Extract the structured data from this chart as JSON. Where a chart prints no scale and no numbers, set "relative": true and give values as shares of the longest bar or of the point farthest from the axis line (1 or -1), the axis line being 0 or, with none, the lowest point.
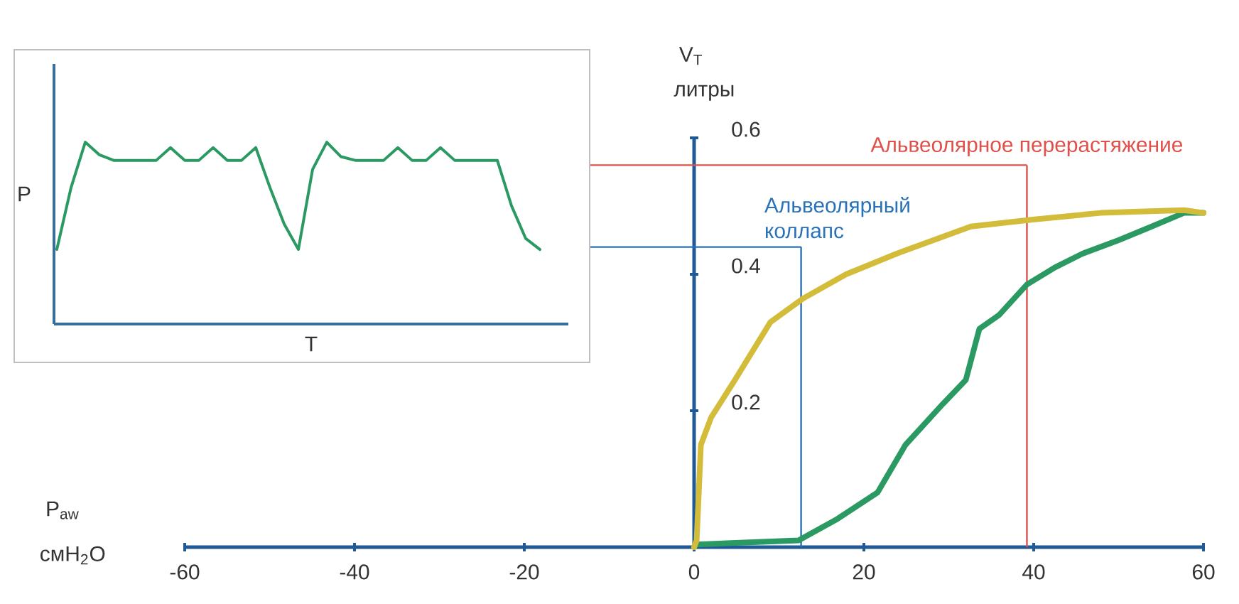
{
  "chart_data": [
    {
      "type": "line",
      "xlabel": "P$_{aw}$",
      "ylabel": "V$_{T}$",
      "xlim": [
        -60,
        60
      ],
      "ylim": [
        0,
        0.6
      ],
      "xticks": [
        -60,
        -40,
        -20,
        0,
        20,
        40,
        60
      ],
      "yticks": [
        0.2,
        0.4,
        0.6
      ],
      "annotations": [
        "смH$_{2}$O",
        "литры"
      ],
      "series": [
        {
          "color": "#2a9a62",
          "x": [
            0,
            0.3,
            12.3,
            16.7,
            21.6,
            24.9,
            29.3,
            32,
            33.6,
            35.9,
            39.2,
            42.5,
            45.7,
            50,
            53.9,
            57.7,
            60
          ],
          "values": [
            0,
            0.004,
            0.01,
            0.04,
            0.08,
            0.15,
            0.21,
            0.245,
            0.32,
            0.34,
            0.385,
            0.41,
            0.43,
            0.45,
            0.47,
            0.49,
            0.49
          ]
        },
        {
          "color": "#d2bc3a",
          "x": [
            0,
            0.3,
            0.8,
            2,
            4.8,
            9,
            12.9,
            17.9,
            23.8,
            32.6,
            39.7,
            47.9,
            57.7,
            60
          ],
          "values": [
            0,
            0.01,
            0.15,
            0.19,
            0.245,
            0.33,
            0.365,
            0.4,
            0.43,
            0.47,
            0.48,
            0.49,
            0.494,
            0.49
          ]
        }
      ],
      "ref_lines": [
        {
          "axis": "x",
          "value": 39.2,
          "label": "Альвеолярное перерастяжение",
          "color": "#e0504a"
        },
        {
          "axis": "y",
          "value": 0.56,
          "color": "#e0504a"
        },
        {
          "axis": "x",
          "value": 12.6,
          "label": "Альвеолярный коллапс",
          "color": "#2a72b8"
        },
        {
          "axis": "y",
          "value": 0.44,
          "color": "#2a72b8"
        }
      ]
    },
    {
      "type": "line",
      "relative": true,
      "xlabel": "T",
      "ylabel": "P",
      "categories": [
        null,
        null,
        null,
        null,
        null,
        null,
        null,
        null,
        null,
        null,
        null,
        null,
        null,
        null,
        null,
        null,
        null,
        null,
        null,
        null,
        null,
        null,
        null,
        null,
        null,
        null,
        null,
        null,
        null,
        null,
        null,
        null,
        null,
        null,
        null
      ],
      "series": [
        {
          "color": "#2a9a62",
          "values": [
            0.41,
            0.75,
            1.0,
            0.93,
            0.9,
            0.9,
            0.9,
            0.9,
            0.97,
            0.9,
            0.9,
            0.97,
            0.9,
            0.9,
            0.97,
            0.75,
            0.55,
            0.41,
            0.85,
            1.0,
            0.92,
            0.9,
            0.9,
            0.9,
            0.97,
            0.9,
            0.9,
            0.97,
            0.9,
            0.9,
            0.9,
            0.9,
            0.65,
            0.47,
            0.41
          ]
        }
      ]
    }
  ]
}
